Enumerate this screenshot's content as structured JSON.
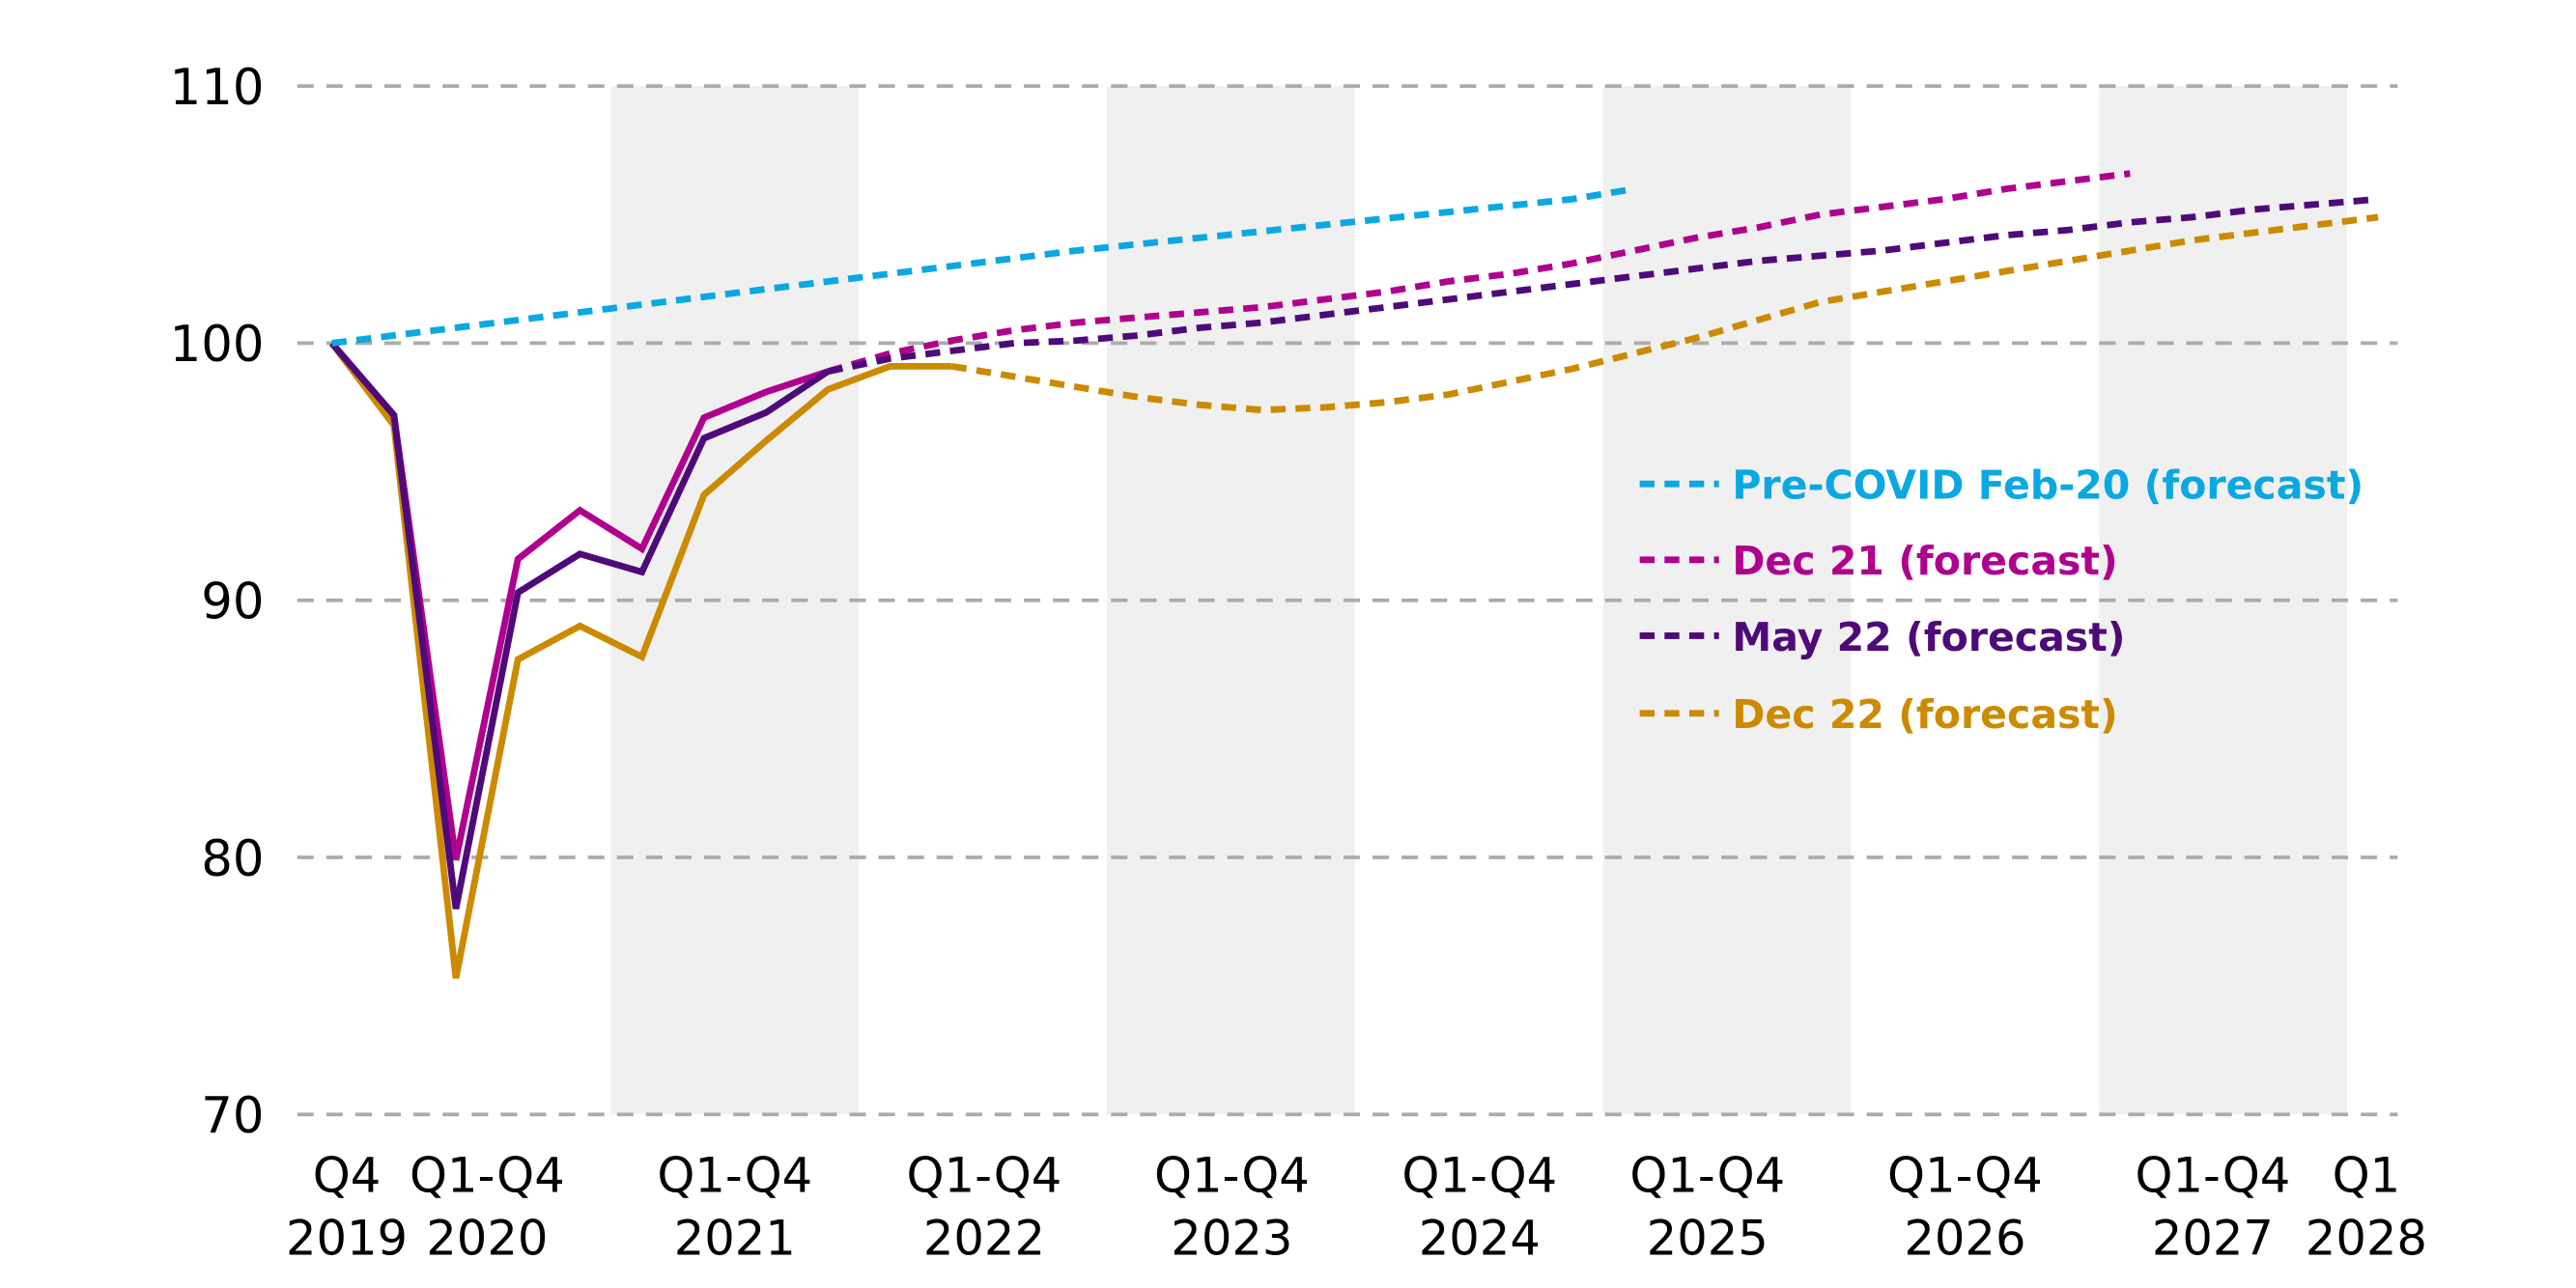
{
  "chart_data": {
    "type": "line",
    "title": "",
    "xlabel": "",
    "ylabel": "",
    "ylim": [
      70,
      110
    ],
    "yticks": [
      "70",
      "80",
      "90",
      "100",
      "110"
    ],
    "grid": "horizontal dashed",
    "x": [
      "Q4 2019",
      "Q1 2020",
      "Q2 2020",
      "Q3 2020",
      "Q4 2020",
      "Q1 2021",
      "Q2 2021",
      "Q3 2021",
      "Q4 2021",
      "Q1 2022",
      "Q2 2022",
      "Q3 2022",
      "Q4 2022",
      "Q1 2023",
      "Q2 2023",
      "Q3 2023",
      "Q4 2023",
      "Q1 2024",
      "Q2 2024",
      "Q3 2024",
      "Q4 2024",
      "Q1 2025",
      "Q2 2025",
      "Q3 2025",
      "Q4 2025",
      "Q1 2026",
      "Q2 2026",
      "Q3 2026",
      "Q4 2026",
      "Q1 2027",
      "Q2 2027",
      "Q3 2027",
      "Q4 2027",
      "Q1 2028"
    ],
    "xtick_labels": [
      {
        "line1": "Q4",
        "line2": "2019"
      },
      {
        "line1": "Q1-Q4",
        "line2": "2020"
      },
      {
        "line1": "Q1-Q4",
        "line2": "2021"
      },
      {
        "line1": "Q1-Q4",
        "line2": "2022"
      },
      {
        "line1": "Q1-Q4",
        "line2": "2023"
      },
      {
        "line1": "Q1-Q4",
        "line2": "2024"
      },
      {
        "line1": "Q1-Q4",
        "line2": "2025"
      },
      {
        "line1": "Q1-Q4",
        "line2": "2026"
      },
      {
        "line1": "Q1-Q4",
        "line2": "2027"
      },
      {
        "line1": "Q1",
        "line2": "2028"
      }
    ],
    "shaded_years": [
      "2021",
      "2023",
      "2025",
      "2027"
    ],
    "legend_position": "right-middle",
    "series": [
      {
        "name": "Pre-COVID Feb-20 (forecast)",
        "color": "#0AA8E2",
        "style": "dashed",
        "values": [
          100,
          100.3,
          100.6,
          100.9,
          101.2,
          101.5,
          101.8,
          102.1,
          102.4,
          102.7,
          103.0,
          103.3,
          103.6,
          103.85,
          104.1,
          104.35,
          104.6,
          104.85,
          105.1,
          105.35,
          105.6,
          106.0,
          null,
          null,
          null,
          null,
          null,
          null,
          null,
          null,
          null,
          null,
          null,
          null
        ],
        "actual_until": 0
      },
      {
        "name": "Dec 21 (forecast)",
        "color": "#B0008E",
        "style": "dashed",
        "values": [
          100,
          97.2,
          79.9,
          91.6,
          93.5,
          92.0,
          97.1,
          98.1,
          98.9,
          99.6,
          100.1,
          100.5,
          100.8,
          101.0,
          101.2,
          101.4,
          101.7,
          102.0,
          102.4,
          102.7,
          103.1,
          103.6,
          104.1,
          104.5,
          105.0,
          105.3,
          105.6,
          106.0,
          106.3,
          106.6,
          null,
          null,
          null,
          null
        ],
        "actual_until": 8
      },
      {
        "name": "May 22 (forecast)",
        "color": "#4F0A7A",
        "style": "dashed",
        "values": [
          100,
          97.2,
          78.0,
          90.3,
          91.8,
          91.1,
          96.3,
          97.3,
          98.9,
          99.4,
          99.7,
          100.0,
          100.1,
          100.3,
          100.6,
          100.8,
          101.1,
          101.4,
          101.7,
          102.0,
          102.3,
          102.6,
          102.9,
          103.2,
          103.4,
          103.6,
          103.9,
          104.2,
          104.4,
          104.7,
          104.9,
          105.2,
          105.4,
          105.6
        ],
        "actual_until": 8
      },
      {
        "name": "Dec 22 (forecast)",
        "color": "#CC8A00",
        "style": "dashed",
        "values": [
          100,
          96.8,
          75.3,
          87.7,
          89.0,
          87.8,
          94.1,
          96.2,
          98.2,
          99.1,
          99.1,
          98.7,
          98.3,
          97.9,
          97.6,
          97.4,
          97.5,
          97.7,
          98.0,
          98.5,
          99.0,
          99.6,
          100.2,
          100.9,
          101.6,
          102.0,
          102.4,
          102.8,
          103.2,
          103.6,
          104.0,
          104.3,
          104.6,
          104.9
        ],
        "actual_until": 10
      }
    ]
  }
}
